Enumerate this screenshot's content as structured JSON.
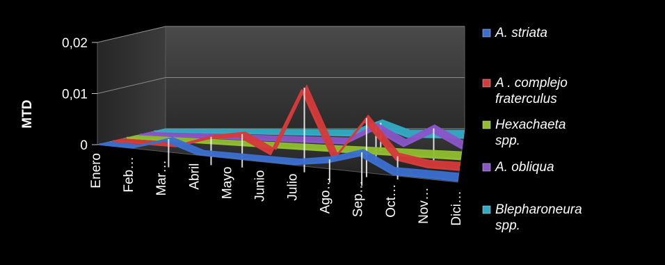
{
  "chart_data": {
    "type": "line",
    "title": "",
    "ylabel": "MTD",
    "xlabel": "",
    "ylim": [
      0,
      0.02
    ],
    "y_ticks": [
      "0",
      "0,01",
      "0,02"
    ],
    "categories": [
      "Enero",
      "Feb…",
      "Mar…",
      "Abril",
      "Mayo",
      "Junio",
      "Julio",
      "Ago…",
      "Sep…",
      "Oct…",
      "Nov…",
      "Dici…"
    ],
    "grid": true,
    "legend_position": "right",
    "series": [
      {
        "name": "A. striata",
        "color": "#3a6fd0",
        "values": [
          0,
          0,
          0.002,
          0,
          0,
          0,
          0,
          0.001,
          0.003,
          0,
          0,
          0
        ]
      },
      {
        "name": "A . complejo fraterculus",
        "color": "#d63a3a",
        "values": [
          0,
          0,
          0,
          0.002,
          0.003,
          0,
          0.013,
          0,
          0.008,
          0.001,
          0,
          0
        ]
      },
      {
        "name": "Hexachaeta spp.",
        "color": "#8fbf2f",
        "values": [
          0,
          0,
          0,
          0,
          0,
          0,
          0,
          0,
          0,
          0,
          0,
          0
        ]
      },
      {
        "name": "A. obliqua",
        "color": "#8a55c8",
        "values": [
          0,
          0,
          0,
          0,
          0,
          0,
          0,
          0,
          0.003,
          0,
          0.003,
          0
        ]
      },
      {
        "name": "Blepharoneura spp.",
        "color": "#33aac4",
        "values": [
          0,
          0,
          0,
          0,
          0,
          0,
          0,
          0,
          0.002,
          0,
          0,
          0
        ]
      }
    ]
  }
}
